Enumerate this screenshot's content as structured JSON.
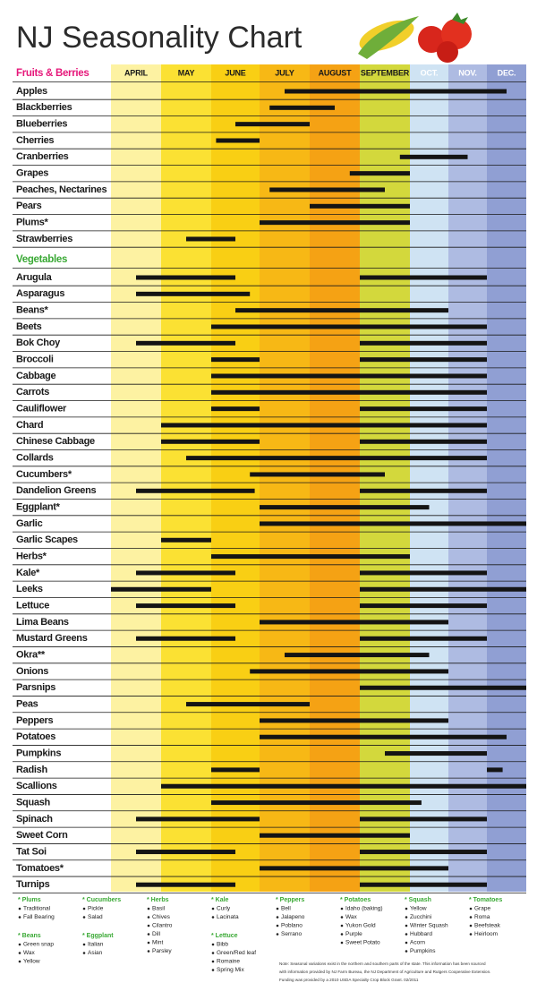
{
  "chart_data": {
    "type": "gantt",
    "title": "NJ Seasonality Chart",
    "categories": [
      "APRIL",
      "MAY",
      "JUNE",
      "JULY",
      "AUGUST",
      "SEPTEMBER",
      "OCT.",
      "NOV.",
      "DEC."
    ],
    "month_colors": [
      "#fdf2a2",
      "#fbe133",
      "#f9cf14",
      "#f7b815",
      "#f5a214",
      "#d3d83c",
      "#cfe3f3",
      "#aebbe2",
      "#909fd3"
    ],
    "xlim": [
      4,
      13
    ],
    "bar_color": "#141414",
    "groups": [
      {
        "name": "Fruits & Berries",
        "color": "#e6177a",
        "rows": [
          {
            "name": "Apples",
            "spans": [
              [
                7.5,
                12.5
              ]
            ]
          },
          {
            "name": "Blackberries",
            "spans": [
              [
                7.2,
                8.5
              ]
            ]
          },
          {
            "name": "Blueberries",
            "spans": [
              [
                6.5,
                8.0
              ]
            ]
          },
          {
            "name": "Cherries",
            "spans": [
              [
                6.1,
                7.0
              ]
            ]
          },
          {
            "name": "Cranberries",
            "spans": [
              [
                9.8,
                11.5
              ]
            ]
          },
          {
            "name": "Grapes",
            "spans": [
              [
                8.8,
                10
              ]
            ]
          },
          {
            "name": "Peaches, Nectarines",
            "spans": [
              [
                7.2,
                9.5
              ]
            ]
          },
          {
            "name": "Pears",
            "spans": [
              [
                8.0,
                10
              ]
            ]
          },
          {
            "name": "Plums*",
            "spans": [
              [
                7.0,
                10
              ]
            ]
          },
          {
            "name": "Strawberries",
            "spans": [
              [
                5.5,
                6.5
              ]
            ]
          }
        ]
      },
      {
        "name": "Vegetables",
        "color": "#3aa935",
        "rows": [
          {
            "name": "Arugula",
            "spans": [
              [
                4.5,
                6.5
              ],
              [
                9,
                12
              ]
            ]
          },
          {
            "name": "Asparagus",
            "spans": [
              [
                4.5,
                6.8
              ]
            ]
          },
          {
            "name": "Beans*",
            "spans": [
              [
                6.5,
                11
              ]
            ]
          },
          {
            "name": "Beets",
            "spans": [
              [
                6,
                12
              ]
            ]
          },
          {
            "name": "Bok Choy",
            "spans": [
              [
                4.5,
                6.5
              ],
              [
                9,
                12
              ]
            ]
          },
          {
            "name": "Broccoli",
            "spans": [
              [
                6,
                7
              ],
              [
                9,
                12
              ]
            ]
          },
          {
            "name": "Cabbage",
            "spans": [
              [
                6,
                12
              ]
            ]
          },
          {
            "name": "Carrots",
            "spans": [
              [
                6,
                12
              ]
            ]
          },
          {
            "name": "Cauliflower",
            "spans": [
              [
                6,
                7
              ],
              [
                9,
                12
              ]
            ]
          },
          {
            "name": "Chard",
            "spans": [
              [
                5,
                12
              ]
            ]
          },
          {
            "name": "Chinese Cabbage",
            "spans": [
              [
                5,
                7
              ],
              [
                9,
                12
              ]
            ]
          },
          {
            "name": "Collards",
            "spans": [
              [
                5.5,
                12
              ]
            ]
          },
          {
            "name": "Cucumbers*",
            "spans": [
              [
                6.8,
                9.5
              ]
            ]
          },
          {
            "name": "Dandelion Greens",
            "spans": [
              [
                4.5,
                6.9
              ],
              [
                9,
                12
              ]
            ]
          },
          {
            "name": "Eggplant*",
            "spans": [
              [
                7,
                10.5
              ]
            ]
          },
          {
            "name": "Garlic",
            "spans": [
              [
                7,
                13
              ]
            ]
          },
          {
            "name": "Garlic Scapes",
            "spans": [
              [
                5,
                6
              ]
            ]
          },
          {
            "name": "Herbs*",
            "spans": [
              [
                6,
                10
              ]
            ]
          },
          {
            "name": "Kale*",
            "spans": [
              [
                4.5,
                6.5
              ],
              [
                9,
                12
              ]
            ]
          },
          {
            "name": "Leeks",
            "spans": [
              [
                4,
                6
              ],
              [
                9,
                13
              ]
            ]
          },
          {
            "name": "Lettuce",
            "spans": [
              [
                4.5,
                6.5
              ],
              [
                9,
                12
              ]
            ]
          },
          {
            "name": "Lima Beans",
            "spans": [
              [
                7,
                11
              ]
            ]
          },
          {
            "name": "Mustard Greens",
            "spans": [
              [
                4.5,
                6.5
              ],
              [
                9,
                12
              ]
            ]
          },
          {
            "name": "Okra**",
            "spans": [
              [
                7.5,
                10.5
              ]
            ]
          },
          {
            "name": "Onions",
            "spans": [
              [
                6.8,
                11
              ]
            ]
          },
          {
            "name": "Parsnips",
            "spans": [
              [
                9,
                13
              ]
            ]
          },
          {
            "name": "Peas",
            "spans": [
              [
                5.5,
                8
              ]
            ]
          },
          {
            "name": "Peppers",
            "spans": [
              [
                7,
                11
              ]
            ]
          },
          {
            "name": "Potatoes",
            "spans": [
              [
                7,
                12.5
              ]
            ]
          },
          {
            "name": "Pumpkins",
            "spans": [
              [
                9.5,
                12
              ]
            ]
          },
          {
            "name": "Radish",
            "spans": [
              [
                6,
                7
              ],
              [
                12,
                12.4
              ]
            ]
          },
          {
            "name": "Scallions",
            "spans": [
              [
                5,
                13
              ]
            ]
          },
          {
            "name": "Squash",
            "spans": [
              [
                6,
                10.3
              ]
            ]
          },
          {
            "name": "Spinach",
            "spans": [
              [
                4.5,
                7
              ],
              [
                9,
                12
              ]
            ]
          },
          {
            "name": "Sweet Corn",
            "spans": [
              [
                7,
                10
              ]
            ]
          },
          {
            "name": "Tat Soi",
            "spans": [
              [
                4.5,
                6.5
              ],
              [
                9,
                12
              ]
            ]
          },
          {
            "name": "Tomatoes*",
            "spans": [
              [
                7,
                11
              ]
            ]
          },
          {
            "name": "Turnips",
            "spans": [
              [
                4.5,
                6.5
              ],
              [
                9,
                12
              ]
            ]
          }
        ]
      }
    ],
    "varieties": [
      [
        {
          "title": "* Plums",
          "items": [
            "Traditional",
            "Fall Bearing"
          ]
        },
        {
          "title": "* Beans",
          "items": [
            "Green snap",
            "Wax",
            "Yellow"
          ]
        }
      ],
      [
        {
          "title": "* Cucumbers",
          "items": [
            "Pickle",
            "Salad"
          ]
        },
        {
          "title": "* Eggplant",
          "items": [
            "Italian",
            "Asian"
          ]
        }
      ],
      [
        {
          "title": "* Herbs",
          "items": [
            "Basil",
            "Chives",
            "Cilantro",
            "Dill",
            "Mint",
            "Parsley"
          ]
        }
      ],
      [
        {
          "title": "* Kale",
          "items": [
            "Curly",
            "Lacinata"
          ]
        },
        {
          "title": "* Lettuce",
          "items": [
            "Bibb",
            "Green/Red leaf",
            "Romaine",
            "Spring Mix"
          ]
        }
      ],
      [
        {
          "title": "* Peppers",
          "items": [
            "Bell",
            "Jalapeno",
            "Poblano",
            "Serrano"
          ]
        }
      ],
      [
        {
          "title": "* Potatoes",
          "items": [
            "Idaho (baking)",
            "Wax",
            "Yukon Gold",
            "Purple",
            "Sweet Potato"
          ]
        }
      ],
      [
        {
          "title": "* Squash",
          "items": [
            "Yellow",
            "Zucchini",
            "Winter Squash",
            "Hubbard",
            "Acorn",
            "Pumpkins"
          ]
        }
      ],
      [
        {
          "title": "* Tomatoes",
          "items": [
            "Grape",
            "Roma",
            "Beefsteak",
            "Heirloom"
          ]
        }
      ]
    ],
    "note": [
      "Note: Seasonal variations exist in the northern and southern parts of the state. This information has been sourced",
      "with information provided by NJ Farm Bureau, the NJ Department of Agriculture and Rutgers Cooperative Extension.",
      "Funding was provided by a 2010 USDA Specialty Crop Block Grant. 02/2011"
    ]
  }
}
